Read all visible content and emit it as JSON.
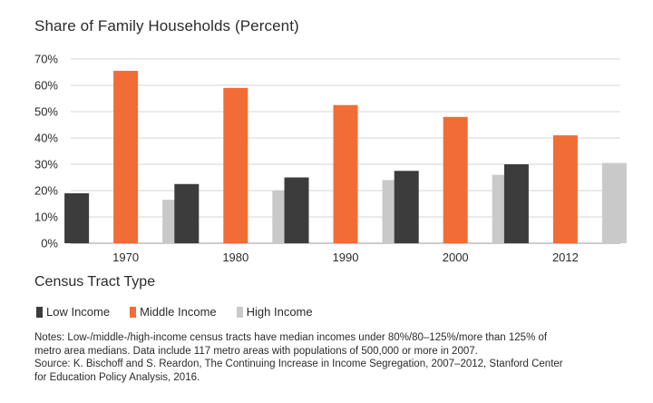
{
  "chart_data": {
    "type": "bar",
    "title": "Share of Family Households (Percent)",
    "categories": [
      "1970",
      "1980",
      "1990",
      "2000",
      "2012"
    ],
    "series": [
      {
        "name": "Low Income",
        "values": [
          19,
          22.5,
          25,
          27.5,
          30
        ],
        "color": "#3c3c3c"
      },
      {
        "name": "Middle Income",
        "values": [
          65.5,
          59,
          52.5,
          48,
          41
        ],
        "color": "#f26c35"
      },
      {
        "name": "High Income",
        "values": [
          16.5,
          20,
          24,
          26,
          30.5
        ],
        "color": "#c9c9c9"
      }
    ],
    "ylim": [
      0,
      70
    ],
    "yticks": [
      0,
      10,
      20,
      30,
      40,
      50,
      60,
      70
    ],
    "ytick_suffix": "%",
    "grid": true,
    "legend_title": "Census Tract Type",
    "legend_position": "bottom-left"
  },
  "notes": {
    "lines": [
      "Notes: Low-/middle-/high-income census tracts have median incomes under 80%/80–125%/more than 125% of",
      "metro area medians. Data include 117 metro areas with populations of 500,000 or more in 2007.",
      "Source: K. Bischoff and S. Reardon, The Continuing Increase in Income Segregation, 2007–2012, Stanford Center",
      "for Education Policy Analysis, 2016."
    ]
  }
}
